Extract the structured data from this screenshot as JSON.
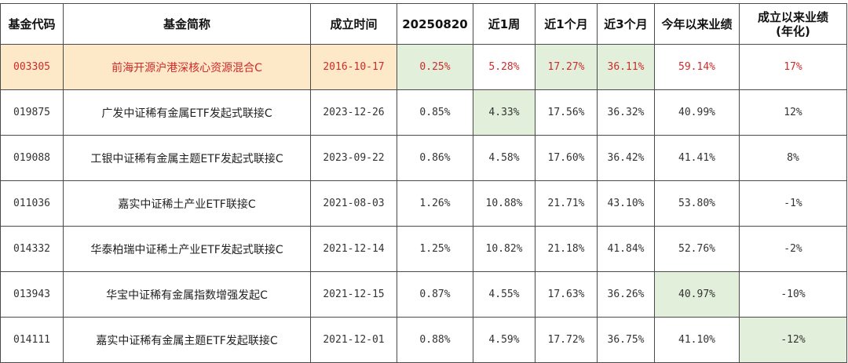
{
  "table": {
    "headers": [
      "基金代码",
      "基金简称",
      "成立时间",
      "20250820",
      "近1周",
      "近1个月",
      "近3个月",
      "今年以来业绩",
      "成立以来业绩",
      "(年化)"
    ],
    "rows": [
      [
        "003305",
        "前海开源沪港深核心资源混合C",
        "2016-10-17",
        "0.25%",
        "5.28%",
        "17.27%",
        "36.11%",
        "59.14%",
        "17%"
      ],
      [
        "019875",
        "广发中证稀有金属ETF发起式联接C",
        "2023-12-26",
        "0.85%",
        "4.33%",
        "17.56%",
        "36.32%",
        "40.99%",
        "12%"
      ],
      [
        "019088",
        "工银中证稀有金属主题ETF发起式联接C",
        "2023-09-22",
        "0.86%",
        "4.58%",
        "17.60%",
        "36.42%",
        "41.41%",
        "8%"
      ],
      [
        "011036",
        "嘉实中证稀土产业ETF联接C",
        "2021-08-03",
        "1.26%",
        "10.88%",
        "21.71%",
        "43.10%",
        "53.80%",
        "-1%"
      ],
      [
        "014332",
        "华泰柏瑞中证稀土产业ETF发起式联接C",
        "2021-12-14",
        "1.25%",
        "10.82%",
        "21.18%",
        "41.84%",
        "52.76%",
        "-2%"
      ],
      [
        "013943",
        "华宝中证稀有金属指数增强发起C",
        "2021-12-15",
        "0.87%",
        "4.55%",
        "17.63%",
        "36.26%",
        "40.97%",
        "-10%"
      ],
      [
        "014111",
        "嘉实中证稀有金属主题ETF发起联接C",
        "2021-12-01",
        "0.88%",
        "4.59%",
        "17.72%",
        "36.75%",
        "41.10%",
        "-12%"
      ]
    ],
    "colors": {
      "highlight_row_bg": "#fde8c8",
      "highlight_text": "#d02a2a",
      "best_cell_bg": "#e2efda",
      "border": "#4a4a4a"
    }
  }
}
